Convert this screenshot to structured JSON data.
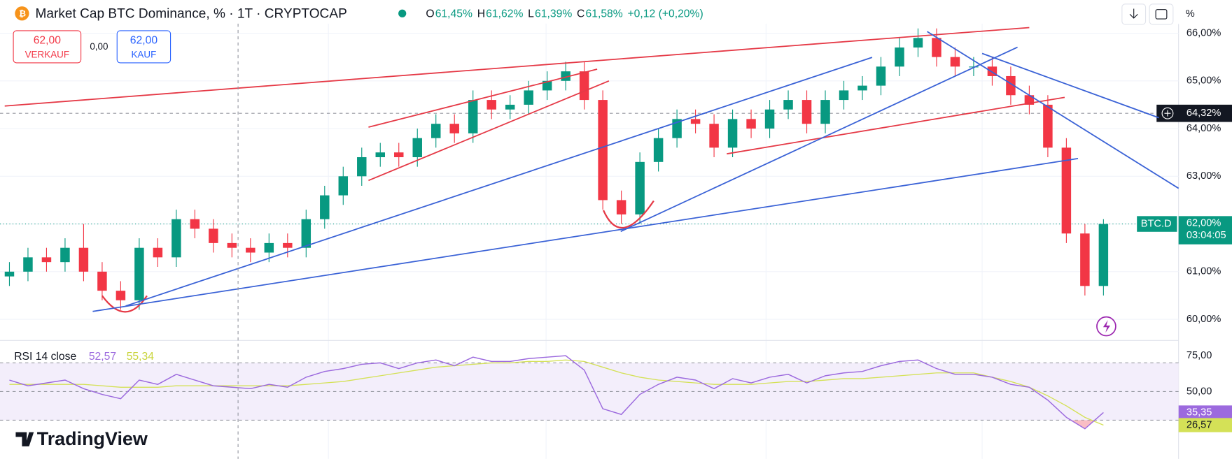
{
  "chart_data": [
    {
      "type": "candlestick",
      "title": "Market Cap BTC Dominance, % · 1T · CRYPTOCAP",
      "header_values": [
        {
          "label": "O",
          "value": "61,45%"
        },
        {
          "label": "H",
          "value": "61,62%"
        },
        {
          "label": "L",
          "value": "61,39%"
        },
        {
          "label": "C",
          "value": "61,58%"
        }
      ],
      "change": "+0,12 (+0,20%)",
      "trade": {
        "sell_price": "62,00",
        "sell_label": "VERKAUF",
        "spread": "0,00",
        "buy_price": "62,00",
        "buy_label": "KAUF"
      },
      "scale_unit": "%",
      "up_color": "#089981",
      "down_color": "#f23645",
      "open": [
        60.9,
        61.0,
        61.3,
        61.2,
        61.5,
        61.0,
        60.6,
        60.4,
        61.5,
        61.3,
        62.1,
        61.9,
        61.6,
        61.5,
        61.4,
        61.6,
        61.5,
        62.1,
        62.6,
        63.0,
        63.4,
        63.5,
        63.4,
        63.8,
        64.1,
        63.9,
        64.6,
        64.4,
        64.5,
        64.8,
        65.0,
        65.2,
        64.6,
        62.5,
        62.2,
        63.3,
        63.8,
        64.2,
        64.1,
        63.6,
        64.2,
        64.0,
        64.4,
        64.6,
        64.1,
        64.6,
        64.8,
        64.9,
        65.3,
        65.7,
        65.9,
        65.5,
        65.3,
        65.3,
        65.1,
        64.7,
        64.5,
        63.6,
        61.8,
        60.7
      ],
      "high": [
        61.2,
        61.5,
        61.5,
        61.7,
        62.0,
        61.2,
        60.8,
        61.7,
        61.7,
        62.3,
        62.3,
        62.1,
        61.8,
        61.7,
        61.8,
        61.8,
        62.3,
        62.8,
        63.2,
        63.6,
        63.7,
        63.7,
        64.0,
        64.3,
        64.3,
        64.8,
        64.8,
        64.7,
        65.0,
        65.2,
        65.4,
        65.4,
        64.8,
        62.7,
        63.5,
        64.0,
        64.4,
        64.4,
        64.3,
        64.4,
        64.4,
        64.6,
        64.8,
        64.8,
        64.8,
        65.0,
        65.1,
        65.5,
        65.9,
        66.1,
        66.1,
        65.7,
        65.5,
        65.5,
        65.3,
        64.9,
        64.7,
        63.8,
        62.0,
        62.1
      ],
      "low": [
        60.7,
        60.8,
        61.0,
        61.0,
        60.8,
        60.4,
        60.2,
        60.2,
        61.1,
        61.1,
        61.7,
        61.4,
        61.3,
        61.2,
        61.2,
        61.3,
        61.3,
        61.9,
        62.4,
        62.8,
        63.2,
        63.2,
        63.2,
        63.6,
        63.7,
        63.7,
        64.2,
        64.2,
        64.3,
        64.6,
        64.8,
        64.4,
        62.3,
        62.0,
        62.0,
        63.1,
        63.6,
        63.9,
        63.4,
        63.4,
        63.8,
        63.8,
        64.2,
        63.9,
        63.9,
        64.4,
        64.6,
        64.7,
        65.1,
        65.5,
        65.3,
        65.1,
        65.1,
        64.9,
        64.5,
        64.3,
        63.4,
        61.6,
        60.5,
        60.5
      ],
      "close": [
        61.0,
        61.3,
        61.2,
        61.5,
        61.0,
        60.6,
        60.4,
        61.5,
        61.3,
        62.1,
        61.9,
        61.6,
        61.5,
        61.4,
        61.6,
        61.5,
        62.1,
        62.6,
        63.0,
        63.4,
        63.5,
        63.4,
        63.8,
        64.1,
        63.9,
        64.6,
        64.4,
        64.5,
        64.8,
        65.0,
        65.2,
        64.6,
        62.5,
        62.2,
        63.3,
        63.8,
        64.2,
        64.1,
        63.6,
        64.2,
        64.0,
        64.4,
        64.6,
        64.1,
        64.6,
        64.8,
        64.9,
        65.3,
        65.7,
        65.9,
        65.5,
        65.3,
        65.3,
        65.1,
        64.7,
        64.5,
        63.6,
        61.8,
        60.7,
        62.0
      ],
      "ylim": [
        59.59,
        66.2
      ],
      "yticks": [
        {
          "value": 60,
          "label": "60,00%"
        },
        {
          "value": 61,
          "label": "61,00%"
        },
        {
          "value": 62,
          "label": "62,00%"
        },
        {
          "value": 63,
          "label": "63,00%"
        },
        {
          "value": 64,
          "label": "64,00%"
        },
        {
          "value": 65,
          "label": "65,00%"
        },
        {
          "value": 66,
          "label": "66,00%"
        }
      ],
      "grid": true,
      "last_price": {
        "symbol": "BTC.D",
        "value": 62,
        "label": "62,00%",
        "countdown": "03:04:05"
      },
      "crosshair": {
        "value": 64.32,
        "label": "64,32%"
      }
    },
    {
      "type": "line",
      "title": "RSI 14 close",
      "header_values": [
        "52,57",
        "55,34"
      ],
      "series": [
        {
          "color": "#9c6ade",
          "values": [
            58,
            54,
            56,
            58,
            52,
            48,
            45,
            58,
            55,
            62,
            58,
            54,
            53,
            52,
            55,
            53,
            60,
            64,
            66,
            69,
            70,
            66,
            70,
            72,
            68,
            74,
            71,
            71,
            73,
            74,
            75,
            65,
            38,
            34,
            48,
            55,
            60,
            58,
            52,
            59,
            56,
            60,
            62,
            56,
            61,
            63,
            64,
            68,
            71,
            72,
            66,
            62,
            62,
            60,
            55,
            53,
            44,
            32,
            24,
            35.35
          ]
        },
        {
          "color": "#d4e157",
          "values": [
            55,
            55,
            55,
            55,
            55,
            54,
            53,
            53,
            53,
            54,
            54,
            54,
            54,
            54,
            54,
            54,
            55,
            56,
            57,
            59,
            61,
            63,
            65,
            67,
            68,
            69,
            70,
            70,
            71,
            71,
            72,
            71,
            67,
            63,
            60,
            58,
            57,
            56,
            55,
            55,
            55,
            56,
            57,
            57,
            58,
            59,
            59,
            60,
            61,
            62,
            63,
            63,
            63,
            60,
            57,
            53,
            47,
            40,
            32,
            26.57
          ]
        }
      ],
      "end_labels": [
        "35,35",
        "26,57"
      ],
      "levels": [
        30,
        50,
        70
      ],
      "ylim": [
        3,
        84
      ],
      "yticks": [
        {
          "value": 75,
          "label": "75,00"
        },
        {
          "value": 50,
          "label": "50,00"
        }
      ]
    }
  ],
  "brand": "TradingView"
}
